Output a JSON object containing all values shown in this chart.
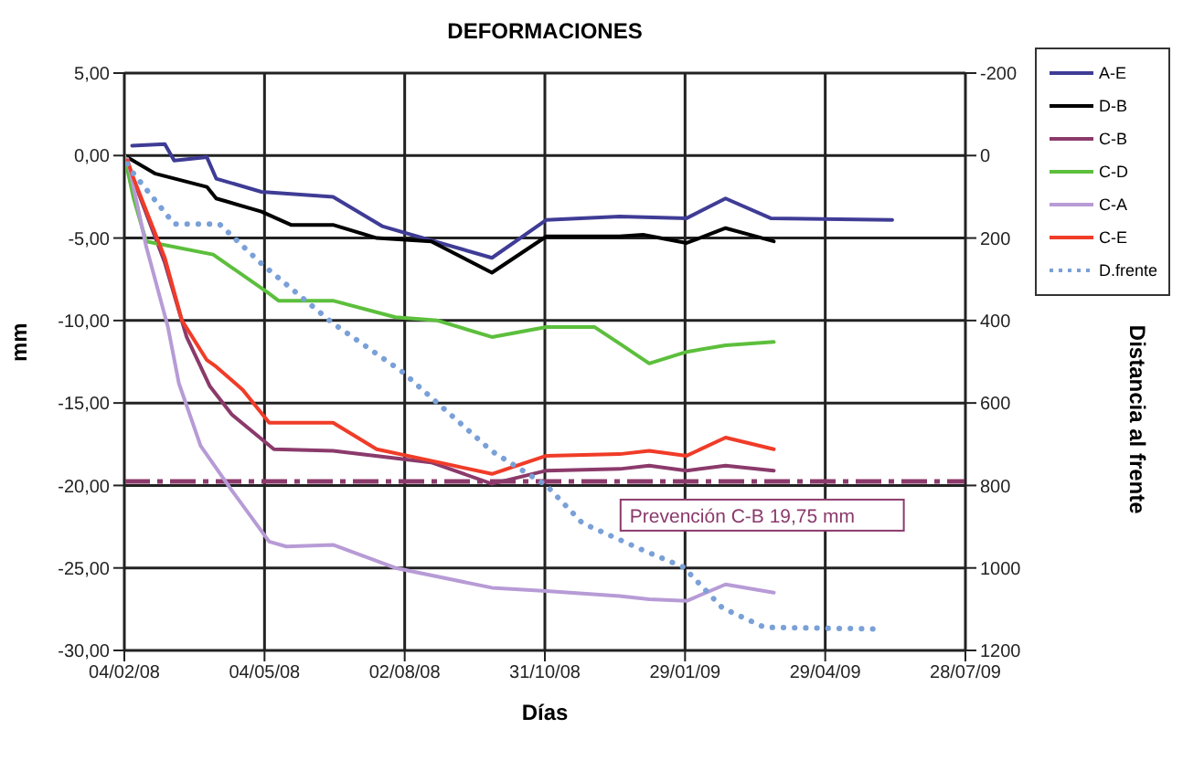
{
  "chart_data": {
    "type": "line",
    "title": "DEFORMACIONES",
    "xlabel": "Días",
    "ylabel": "mm",
    "y2label": "Distancia al frente",
    "xlim": [
      "2008-02-04",
      "2009-07-28"
    ],
    "xticks": [
      {
        "value": "2008-02-04",
        "label": "04/02/08"
      },
      {
        "value": "2008-05-04",
        "label": "04/05/08"
      },
      {
        "value": "2008-08-02",
        "label": "02/08/08"
      },
      {
        "value": "2008-10-31",
        "label": "31/10/08"
      },
      {
        "value": "2009-01-29",
        "label": "29/01/09"
      },
      {
        "value": "2009-04-29",
        "label": "29/04/09"
      },
      {
        "value": "2009-07-28",
        "label": "28/07/09"
      }
    ],
    "ylim": [
      -30,
      5
    ],
    "yticks": [
      {
        "value": -30,
        "label": "-30,00"
      },
      {
        "value": -25,
        "label": "-25,00"
      },
      {
        "value": -20,
        "label": "-20,00"
      },
      {
        "value": -15,
        "label": "-15,00"
      },
      {
        "value": -10,
        "label": "-10,00"
      },
      {
        "value": -5,
        "label": "-5,00"
      },
      {
        "value": 0,
        "label": "0,00"
      },
      {
        "value": 5,
        "label": "5,00"
      }
    ],
    "y2lim": [
      1200,
      -200
    ],
    "y2ticks": [
      1200,
      1000,
      800,
      600,
      400,
      200,
      0,
      -200
    ],
    "grid": true,
    "legend": "top right",
    "marker": "none",
    "series": [
      {
        "name": "A-E",
        "color": "#3f3c96",
        "x": [
          "2008-02-09",
          "2008-03-01",
          "2008-03-07",
          "2008-03-28",
          "2008-04-03",
          "2008-05-02",
          "2008-06-17",
          "2008-07-19",
          "2008-09-27",
          "2008-11-01",
          "2008-12-18",
          "2009-01-30",
          "2009-02-24",
          "2009-03-25",
          "2009-06-11"
        ],
        "values": [
          0.6,
          0.7,
          -0.3,
          -0.1,
          -1.4,
          -2.2,
          -2.5,
          -4.3,
          -6.2,
          -3.9,
          -3.7,
          -3.8,
          -2.6,
          -3.8,
          -3.9
        ]
      },
      {
        "name": "D-B",
        "color": "#000000",
        "x": [
          "2008-02-04",
          "2008-02-24",
          "2008-03-28",
          "2008-04-03",
          "2008-05-02",
          "2008-05-21",
          "2008-06-17",
          "2008-07-15",
          "2008-08-19",
          "2008-09-27",
          "2008-11-01",
          "2008-12-18",
          "2009-01-02",
          "2009-01-30",
          "2009-02-24",
          "2009-03-27"
        ],
        "values": [
          0,
          -1.1,
          -1.9,
          -2.6,
          -3.4,
          -4.2,
          -4.2,
          -5.0,
          -5.2,
          -7.1,
          -4.9,
          -4.9,
          -4.8,
          -5.3,
          -4.4,
          -5.2
        ]
      },
      {
        "name": "C-B",
        "color": "#8b3a6b",
        "x": [
          "2008-02-04",
          "2008-02-10",
          "2008-03-01",
          "2008-03-15",
          "2008-03-30",
          "2008-04-13",
          "2008-05-10",
          "2008-06-17",
          "2008-08-19",
          "2008-09-27",
          "2008-11-01",
          "2008-12-18",
          "2009-01-06",
          "2009-01-30",
          "2009-02-24",
          "2009-03-27"
        ],
        "values": [
          0,
          -1.5,
          -6.5,
          -11,
          -14.0,
          -15.7,
          -17.8,
          -17.9,
          -18.6,
          -19.9,
          -19.1,
          -19.0,
          -18.8,
          -19.1,
          -18.8,
          -19.1
        ]
      },
      {
        "name": "C-D",
        "color": "#5cbf3c",
        "x": [
          "2008-02-04",
          "2008-02-10",
          "2008-02-18",
          "2008-04-01",
          "2008-05-06",
          "2008-05-13",
          "2008-06-17",
          "2008-07-27",
          "2008-08-23",
          "2008-09-27",
          "2008-11-01",
          "2008-12-02",
          "2008-12-18",
          "2009-01-06",
          "2009-01-30",
          "2009-02-24",
          "2009-03-27"
        ],
        "values": [
          0,
          -2.6,
          -5.2,
          -6.0,
          -8.3,
          -8.8,
          -8.8,
          -9.8,
          -10.0,
          -11.0,
          -10.4,
          -10.4,
          -11.4,
          -12.6,
          -11.9,
          -11.5,
          -11.3
        ]
      },
      {
        "name": "C-A",
        "color": "#b79bd6",
        "x": [
          "2008-02-06",
          "2008-02-18",
          "2008-03-03",
          "2008-03-10",
          "2008-03-24",
          "2008-04-13",
          "2008-05-07",
          "2008-05-18",
          "2008-06-17",
          "2008-07-27",
          "2008-09-27",
          "2008-11-01",
          "2008-12-18",
          "2009-01-06",
          "2009-01-30",
          "2009-02-24",
          "2009-03-27"
        ],
        "values": [
          -0.2,
          -5.5,
          -10.4,
          -13.8,
          -17.6,
          -20.3,
          -23.4,
          -23.7,
          -23.6,
          -25.0,
          -26.2,
          -26.4,
          -26.7,
          -26.9,
          -27.0,
          -26.0,
          -26.5
        ]
      },
      {
        "name": "C-E",
        "color": "#f03c28",
        "x": [
          "2008-02-06",
          "2008-02-10",
          "2008-03-01",
          "2008-03-12",
          "2008-03-28",
          "2008-04-03",
          "2008-04-20",
          "2008-05-07",
          "2008-06-17",
          "2008-07-15",
          "2008-08-19",
          "2008-09-27",
          "2008-11-01",
          "2008-12-18",
          "2009-01-06",
          "2009-01-30",
          "2009-02-24",
          "2009-03-27"
        ],
        "values": [
          -0.3,
          -1.4,
          -6.2,
          -10,
          -12.4,
          -12.8,
          -14.2,
          -16.2,
          -16.2,
          -17.8,
          -18.5,
          -19.3,
          -18.2,
          -18.1,
          -17.9,
          -18.2,
          -17.1,
          -17.8
        ]
      },
      {
        "name": "D.frente",
        "color": "#7aa0d8",
        "axis": "y2",
        "line_style": "dotted",
        "x": [
          "2008-02-06",
          "2008-02-10",
          "2008-03-07",
          "2008-04-05",
          "2008-05-02",
          "2008-06-17",
          "2008-07-31",
          "2008-09-27",
          "2008-11-01",
          "2008-11-24",
          "2009-01-02",
          "2009-01-28",
          "2009-02-22",
          "2009-03-21",
          "2009-06-03"
        ],
        "values": [
          20,
          44,
          166,
          166,
          262,
          407,
          523,
          717,
          800,
          891,
          957,
          998,
          1097,
          1144,
          1148
        ]
      }
    ],
    "ref_lines": [
      {
        "axis": "y",
        "value": -19.75,
        "label": "Prevención C-B 19,75 mm",
        "color": "#8b3a6b",
        "line_style": "dashdot"
      }
    ]
  }
}
